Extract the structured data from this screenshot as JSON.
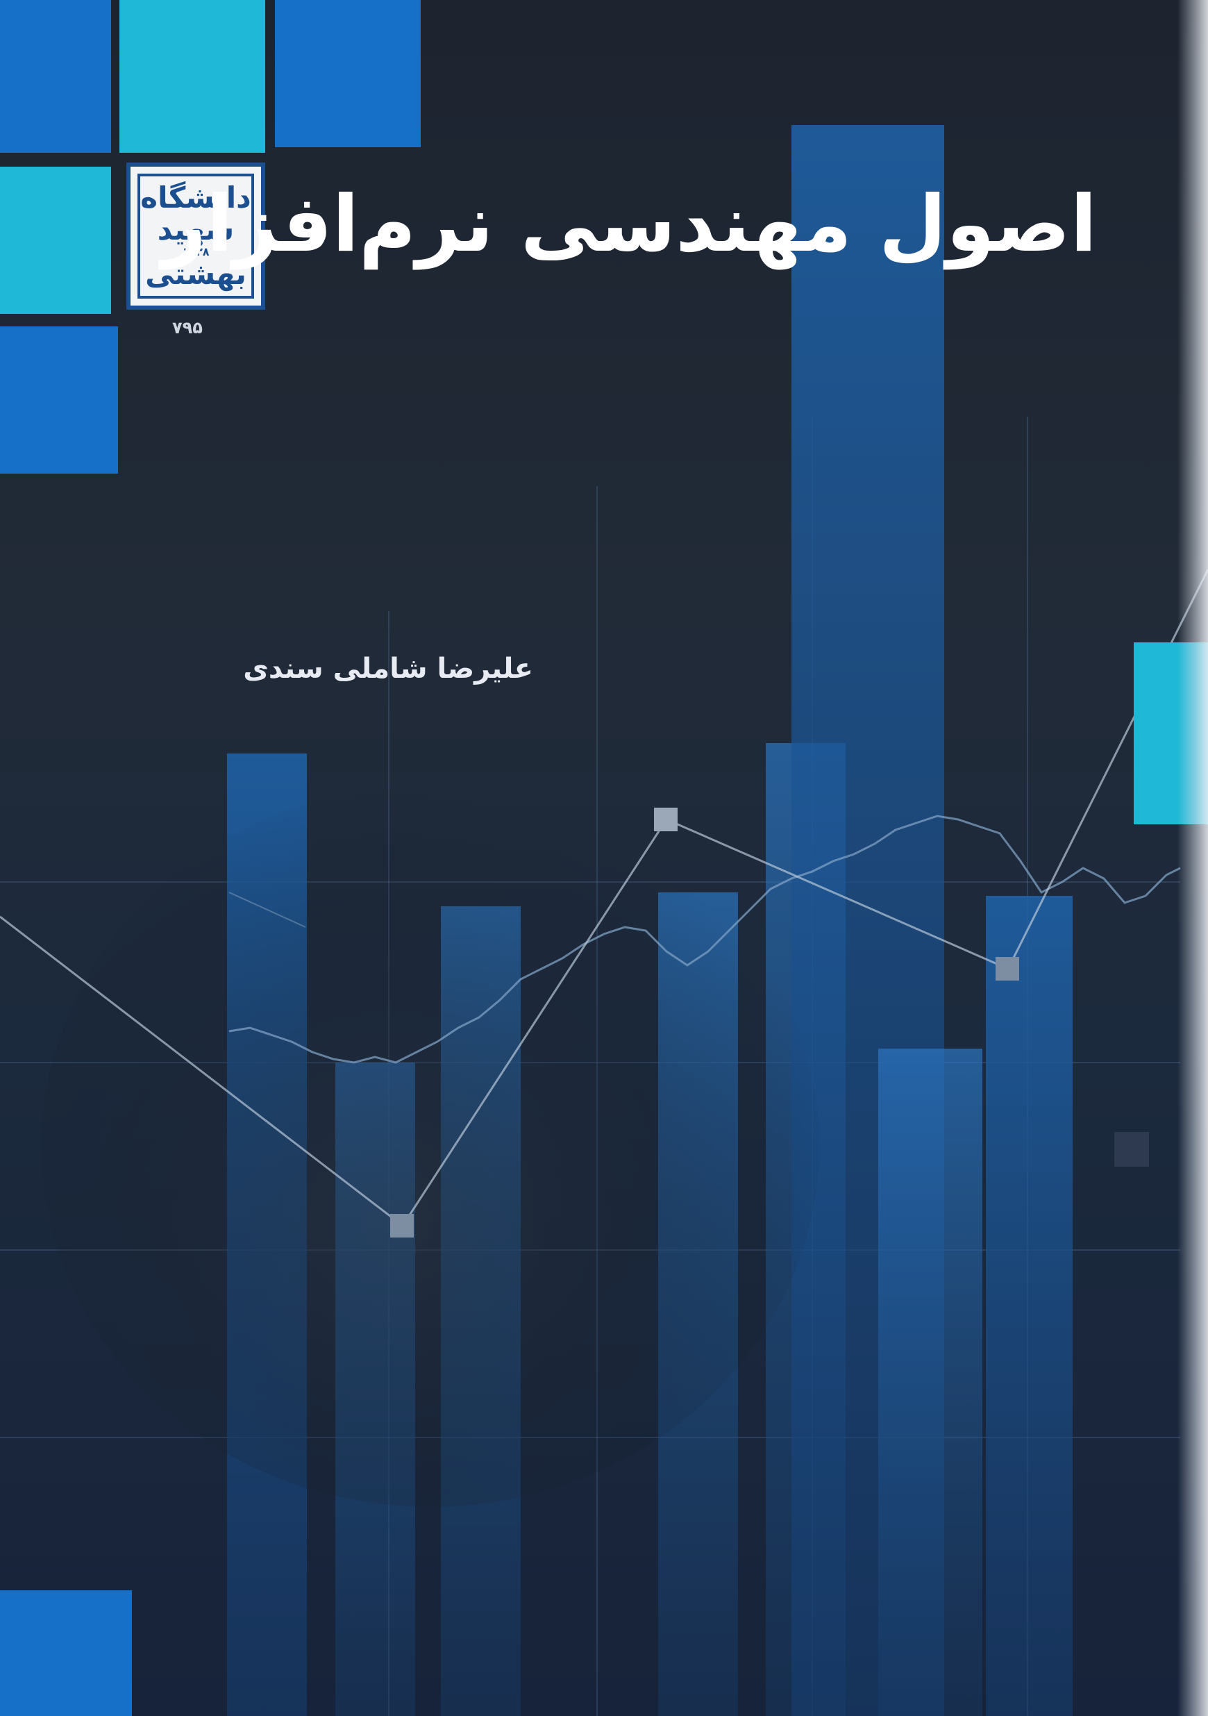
{
  "book": {
    "title": "اصول مهندسی نرم‌افزار",
    "author": "علیرضا شاملی سندی",
    "publisher_logo": {
      "lines": [
        "دانشگاه",
        "شهید",
        "بهشتی"
      ],
      "year": "۱۳۳۸"
    },
    "series_number": "۷۹۵"
  },
  "colors": {
    "background": "#1d2430",
    "square_light": "#1fb8d6",
    "square_blue": "#1670c8",
    "bar_blue": "#1d5a9e",
    "title_text": "#ffffff",
    "logo_blue": "#1c4f8f"
  }
}
